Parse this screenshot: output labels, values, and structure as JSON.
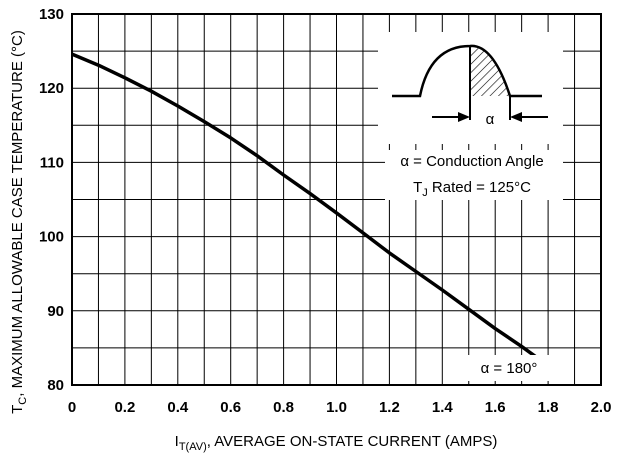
{
  "chart_data": {
    "type": "line",
    "xlabel": {
      "main": "I",
      "sub": "T(AV)",
      "rest": ", AVERAGE  ON-STATE CURRENT (AMPS)"
    },
    "ylabel": {
      "main": "T",
      "sub": "C",
      "rest": ", MAXIMUM ALLOWABLE CASE TEMPERATURE (°C)"
    },
    "xlim": [
      0,
      2.0
    ],
    "ylim": [
      80,
      130
    ],
    "x_ticks": [
      "0",
      "0.2",
      "0.4",
      "0.6",
      "0.8",
      "1.0",
      "1.2",
      "1.4",
      "1.6",
      "1.8",
      "2.0"
    ],
    "y_ticks": [
      "80",
      "90",
      "100",
      "110",
      "120",
      "130"
    ],
    "grid": true,
    "series": [
      {
        "x": [
          0,
          0.1,
          0.2,
          0.3,
          0.4,
          0.5,
          0.6,
          0.7,
          0.8,
          0.9,
          1.0,
          1.1,
          1.2,
          1.3,
          1.4,
          1.5,
          1.6,
          1.7,
          1.8
        ],
        "values": [
          124.6,
          123.1,
          121.4,
          119.6,
          117.6,
          115.5,
          113.3,
          110.9,
          108.3,
          105.8,
          103.2,
          100.5,
          97.8,
          95.3,
          92.8,
          90.2,
          87.6,
          85.2,
          82.6
        ]
      }
    ],
    "annotations": {
      "curve_label": "α = 180°",
      "alpha_symbol": "α",
      "legend_line1": "α = Conduction Angle",
      "legend_line2_main": "T",
      "legend_line2_sub": "J",
      "legend_line2_rest": " Rated = 125°C"
    }
  }
}
